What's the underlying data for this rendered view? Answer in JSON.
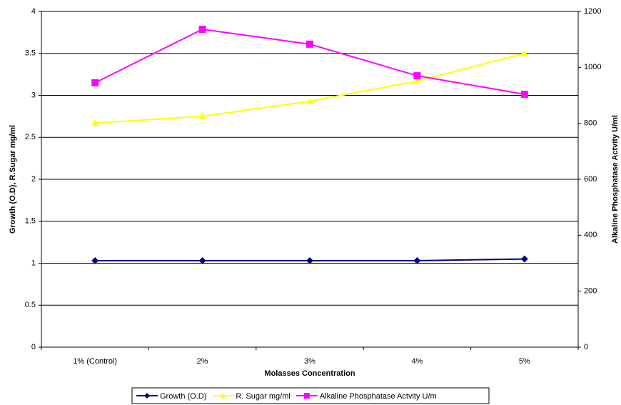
{
  "chart_data": {
    "type": "line",
    "xlabel": "Molasses Concentration",
    "ylabel": "Growth (O.D), R.Sugar mg/ml",
    "y2label": "Alkaline Phosphatase Actvity U/ml",
    "categories": [
      "1% (Control)",
      "2%",
      "3%",
      "4%",
      "5%"
    ],
    "series": [
      {
        "name": "Growth (O.D)",
        "color": "#000080",
        "marker": "diamond",
        "values": [
          1.03,
          1.03,
          1.03,
          1.03,
          1.05
        ]
      },
      {
        "name": "R. Sugar mg/ml",
        "color": "#ffff00",
        "marker": "triangle",
        "values": [
          2.67,
          2.75,
          2.93,
          3.17,
          3.5
        ]
      },
      {
        "name": "Alkaline Phosphatase Actvity U/m",
        "color": "#ff00ff",
        "marker": "square",
        "axis": "y2",
        "values": [
          945,
          1136,
          1083,
          970,
          904
        ]
      }
    ],
    "ylim": [
      0,
      4
    ],
    "yticks": [
      0,
      0.5,
      1,
      1.5,
      2,
      2.5,
      3,
      3.5,
      4
    ],
    "y2lim": [
      0,
      1200
    ],
    "y2ticks": [
      0,
      200,
      400,
      600,
      800,
      1000,
      1200
    ],
    "grid": true,
    "legend": "bottom"
  }
}
